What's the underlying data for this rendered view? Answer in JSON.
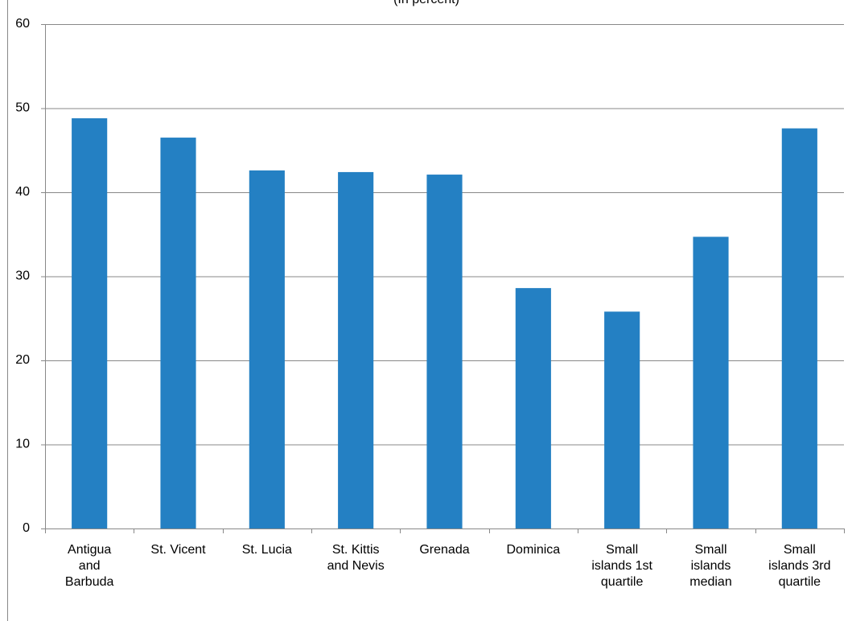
{
  "chart_data": {
    "type": "bar",
    "title": "(In percent)",
    "categories": [
      "Antigua and Barbuda",
      "St. Vicent",
      "St. Lucia",
      "St. Kittis and Nevis",
      "Grenada",
      "Dominica",
      "Small islands 1st quartile",
      "Small islands median",
      "Small islands 3rd quartile"
    ],
    "values": [
      48.8,
      46.5,
      42.6,
      42.4,
      42.1,
      28.6,
      25.8,
      34.7,
      47.6
    ],
    "color": "#2480c3",
    "ylim": [
      0,
      60
    ],
    "yticks": [
      0,
      10,
      20,
      30,
      40,
      50,
      60
    ],
    "grid": true
  }
}
